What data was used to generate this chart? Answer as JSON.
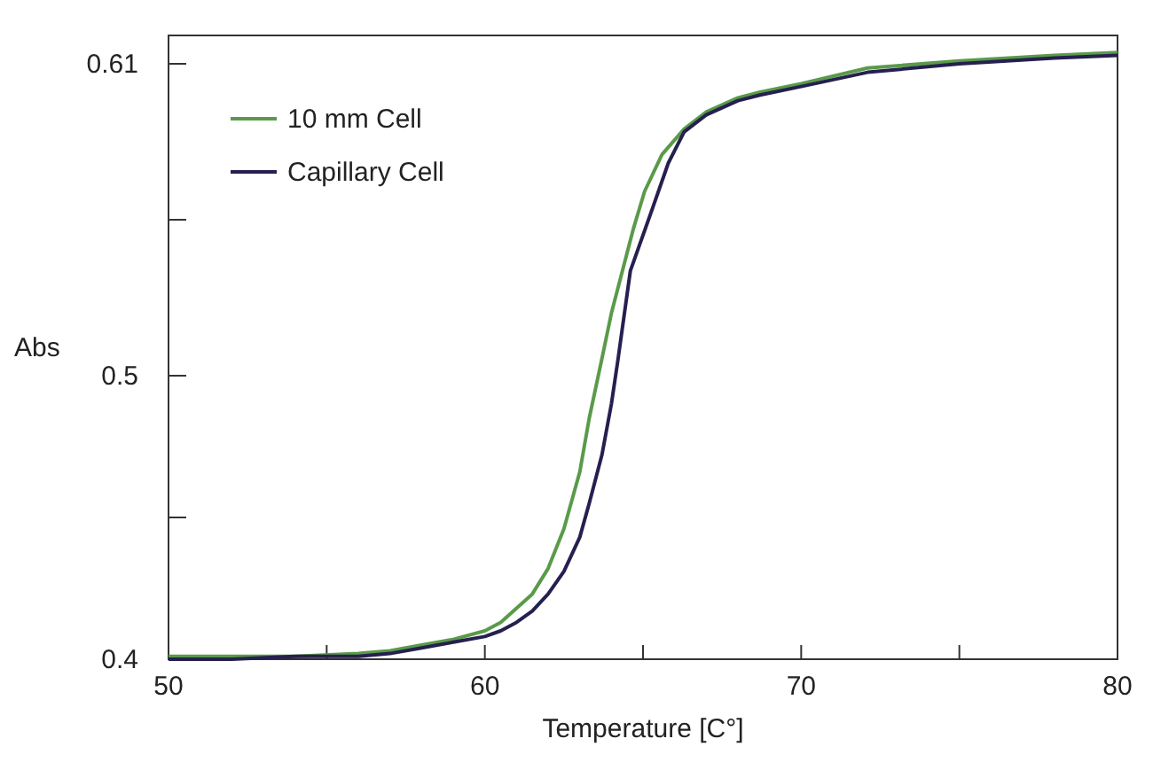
{
  "chart_data": {
    "type": "line",
    "xlabel": "Temperature [C°]",
    "ylabel": "Abs",
    "xlim": [
      50,
      80
    ],
    "ylim": [
      0.4,
      0.62
    ],
    "xticks": [
      50,
      {
        "value": 55,
        "label": null
      },
      60,
      {
        "value": 65,
        "label": null
      },
      70,
      {
        "value": 75,
        "label": null
      },
      80
    ],
    "yticks": [
      0.4,
      {
        "value": 0.45,
        "label": null
      },
      0.5,
      {
        "value": 0.555,
        "label": null
      },
      0.61
    ],
    "grid": false,
    "legend": "top left",
    "marker": "none",
    "line_style": "solid",
    "series": [
      {
        "name": "10 mm Cell",
        "color": "#5a9a4a",
        "x": [
          50,
          52,
          54,
          56,
          57,
          58,
          59,
          60,
          60.5,
          61,
          61.5,
          62,
          62.5,
          63,
          63.3,
          63.7,
          64,
          64.35,
          64.7,
          65.05,
          65.6,
          66.3,
          67,
          68,
          68.7,
          70,
          72.1,
          75,
          78,
          80
        ],
        "values": [
          0.401,
          0.401,
          0.401,
          0.402,
          0.403,
          0.405,
          0.407,
          0.41,
          0.413,
          0.418,
          0.423,
          0.432,
          0.446,
          0.466,
          0.485,
          0.506,
          0.522,
          0.537,
          0.552,
          0.565,
          0.578,
          0.587,
          0.593,
          0.598,
          0.6,
          0.603,
          0.6085,
          0.611,
          0.613,
          0.614
        ]
      },
      {
        "name": "Capillary Cell",
        "color": "#25204f",
        "x": [
          50,
          52,
          54,
          56,
          57,
          58,
          59,
          60,
          60.5,
          61,
          61.5,
          62,
          62.5,
          63,
          63.3,
          63.7,
          64,
          64.2,
          64.6,
          65.3,
          65.8,
          66.3,
          67,
          68,
          68.7,
          70,
          72.1,
          75,
          78,
          80
        ],
        "values": [
          0.4,
          0.4,
          0.401,
          0.401,
          0.402,
          0.404,
          0.406,
          0.408,
          0.41,
          0.413,
          0.417,
          0.423,
          0.431,
          0.443,
          0.455,
          0.472,
          0.49,
          0.505,
          0.537,
          0.559,
          0.575,
          0.586,
          0.592,
          0.597,
          0.599,
          0.602,
          0.607,
          0.61,
          0.612,
          0.613
        ]
      }
    ]
  }
}
